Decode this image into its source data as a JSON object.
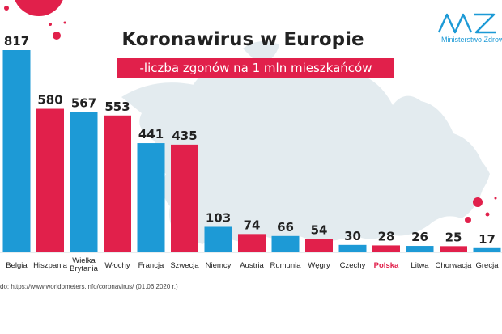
{
  "header": {
    "title": "Koronawirus w Europie",
    "subtitle": "-liczba zgonów na 1 mln mieszkańców"
  },
  "logo": {
    "label": "Ministerstwo Zdrowia"
  },
  "source": "do: https://www.worldometers.info/coronavirus/ (01.06.2020 r.)",
  "colors": {
    "blue": "#1d9ad6",
    "red": "#e1204b",
    "map": "#e3ebef",
    "highlight": "#e1204b"
  },
  "chart_data": {
    "type": "bar",
    "categories": [
      "Belgia",
      "Hiszpania",
      "Wielka Brytania",
      "Włochy",
      "Francja",
      "Szwecja",
      "Niemcy",
      "Austria",
      "Rumunia",
      "Węgry",
      "Czechy",
      "Polska",
      "Litwa",
      "Chorwacja",
      "Grecja"
    ],
    "category_lines": [
      [
        "Belgia"
      ],
      [
        "Hiszpania"
      ],
      [
        "Wielka",
        "Brytania"
      ],
      [
        "Włochy"
      ],
      [
        "Francja"
      ],
      [
        "Szwecja"
      ],
      [
        "Niemcy"
      ],
      [
        "Austria"
      ],
      [
        "Rumunia"
      ],
      [
        "Węgry"
      ],
      [
        "Czechy"
      ],
      [
        "Polska"
      ],
      [
        "Litwa"
      ],
      [
        "Chorwacja"
      ],
      [
        "Grecja"
      ]
    ],
    "values": [
      817,
      580,
      567,
      553,
      441,
      435,
      103,
      74,
      66,
      54,
      30,
      28,
      26,
      25,
      17
    ],
    "bar_colors": [
      "blue",
      "red",
      "blue",
      "red",
      "blue",
      "red",
      "blue",
      "red",
      "blue",
      "red",
      "blue",
      "red",
      "blue",
      "red",
      "blue"
    ],
    "highlight_category": "Polska",
    "ylim": [
      0,
      817
    ],
    "grid": false,
    "legend": "none"
  }
}
